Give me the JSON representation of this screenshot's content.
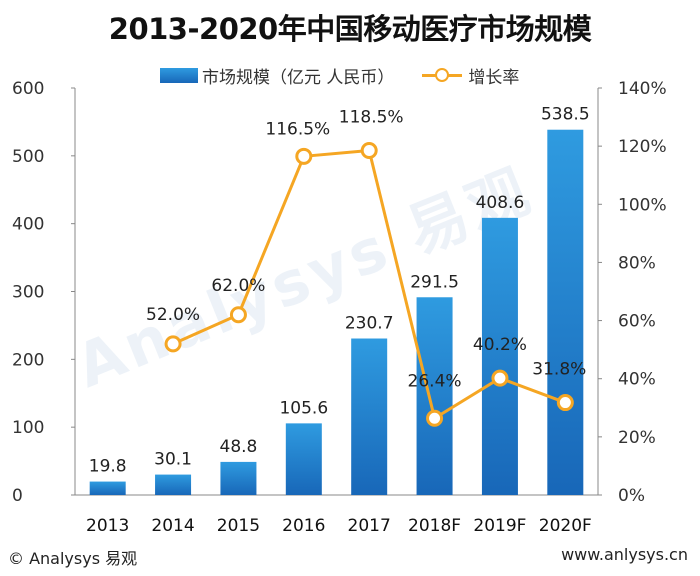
{
  "title": "2013-2020年中国移动医疗市场规模",
  "legend": {
    "bar_label": "市场规模（亿元 人民币）",
    "line_label": "增长率"
  },
  "watermark": "Analysys 易观",
  "footer": {
    "left": "© Analysys 易观",
    "right": "www.anlysys.cn"
  },
  "colors": {
    "bar_top": "#2f9be0",
    "bar_bottom": "#1867b8",
    "line": "#f5a623",
    "axis_text": "#333333"
  },
  "chart_data": {
    "type": "bar",
    "categories": [
      "2013",
      "2014",
      "2015",
      "2016",
      "2017",
      "2018F",
      "2019F",
      "2020F"
    ],
    "series": [
      {
        "name": "市场规模（亿元 人民币）",
        "type": "bar",
        "axis": "left",
        "values": [
          19.8,
          30.1,
          48.8,
          105.6,
          230.7,
          291.5,
          408.6,
          538.5
        ],
        "labels": [
          "19.8",
          "30.1",
          "48.8",
          "105.6",
          "230.7",
          "291.5",
          "408.6",
          "538.5"
        ]
      },
      {
        "name": "增长率",
        "type": "line",
        "axis": "right",
        "values": [
          null,
          52.0,
          62.0,
          116.5,
          118.5,
          26.4,
          40.2,
          31.8
        ],
        "labels": [
          "",
          "52.0%",
          "62.0%",
          "116.5%",
          "118.5%",
          "26.4%",
          "40.2%",
          "31.8%"
        ]
      }
    ],
    "ylim_left": [
      0,
      600
    ],
    "yticks_left": [
      "0",
      "100",
      "200",
      "300",
      "400",
      "500",
      "600"
    ],
    "ylim_right": [
      0,
      140
    ],
    "yticks_right": [
      "0%",
      "20%",
      "40%",
      "60%",
      "80%",
      "100%",
      "120%",
      "140%"
    ],
    "legend_position": "top",
    "grid": false
  }
}
